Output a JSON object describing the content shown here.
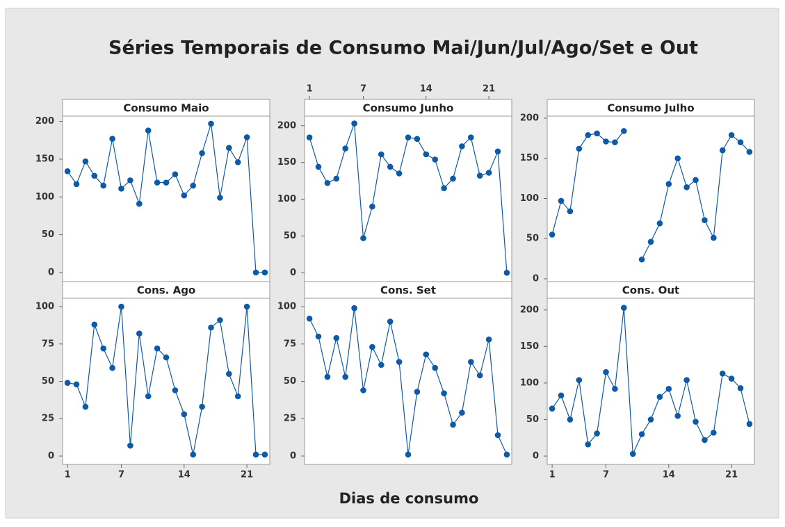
{
  "title": "Séries Temporais de Consumo Mai/Jun/Jul/Ago/Set e Out",
  "xlabel": "Dias de consumo",
  "chart_data": [
    {
      "type": "line",
      "title": "Consumo Maio",
      "color": "#0e5aa7",
      "x": [
        1,
        2,
        3,
        4,
        5,
        6,
        7,
        8,
        9,
        10,
        11,
        12,
        13,
        14,
        15,
        16,
        17,
        18,
        19,
        20,
        21,
        22,
        23
      ],
      "values": [
        134,
        117,
        147,
        128,
        115,
        177,
        111,
        122,
        91,
        188,
        119,
        119,
        130,
        102,
        115,
        158,
        197,
        99,
        165,
        146,
        179,
        0,
        0
      ],
      "xlim": [
        0.45,
        23.55
      ],
      "ylim": [
        -12,
        207
      ],
      "yticks": [
        0,
        50,
        100,
        150,
        200
      ]
    },
    {
      "type": "line",
      "title": "Consumo Junho",
      "color": "#0e5aa7",
      "x": [
        1,
        2,
        3,
        4,
        5,
        6,
        7,
        8,
        9,
        10,
        11,
        12,
        13,
        14,
        15,
        16,
        17,
        18,
        19,
        20,
        21,
        22,
        23
      ],
      "values": [
        184,
        144,
        122,
        128,
        169,
        203,
        47,
        90,
        161,
        144,
        135,
        184,
        182,
        161,
        154,
        115,
        128,
        172,
        184,
        132,
        136,
        165,
        0
      ],
      "xlim": [
        0.45,
        23.55
      ],
      "ylim": [
        -12,
        213
      ],
      "yticks": [
        0,
        50,
        100,
        150,
        200
      ],
      "xticks": [
        1,
        7,
        14,
        21
      ]
    },
    {
      "type": "line",
      "title": "Consumo Julho",
      "color": "#0e5aa7",
      "x": [
        1,
        2,
        3,
        4,
        5,
        6,
        7,
        8,
        9,
        10,
        11,
        12,
        13,
        14,
        15,
        16,
        17,
        18,
        19,
        20,
        21,
        22,
        23
      ],
      "values": [
        55,
        97,
        84,
        162,
        179,
        181,
        171,
        170,
        184,
        null,
        24,
        46,
        69,
        118,
        150,
        114,
        123,
        73,
        51,
        160,
        179,
        170,
        158
      ],
      "xlim": [
        0.45,
        23.55
      ],
      "ylim": [
        -3.5,
        202.6
      ],
      "yticks": [
        0,
        50,
        100,
        150,
        200
      ]
    },
    {
      "type": "line",
      "title": "Cons. Ago",
      "color": "#0e5aa7",
      "x": [
        1,
        2,
        3,
        4,
        5,
        6,
        7,
        8,
        9,
        10,
        11,
        12,
        13,
        14,
        15,
        16,
        17,
        18,
        19,
        20,
        21,
        22,
        23
      ],
      "values": [
        49,
        48,
        33,
        88,
        72,
        59,
        100,
        7,
        82,
        40,
        72,
        66,
        44,
        28,
        1,
        33,
        86,
        91,
        55,
        40,
        100,
        1,
        1
      ],
      "xlim": [
        0.45,
        23.55
      ],
      "ylim": [
        -5.6,
        105.6
      ],
      "yticks": [
        0,
        25,
        50,
        75,
        100
      ],
      "xticks": [
        1,
        7,
        14,
        21
      ]
    },
    {
      "type": "line",
      "title": "Cons. Set",
      "color": "#0e5aa7",
      "x": [
        1,
        2,
        3,
        4,
        5,
        6,
        7,
        8,
        9,
        10,
        11,
        12,
        13,
        14,
        15,
        16,
        17,
        18,
        19,
        20,
        21,
        22,
        23
      ],
      "values": [
        92,
        80,
        53,
        79,
        53,
        99,
        44,
        73,
        61,
        90,
        63,
        1,
        43,
        68,
        59,
        42,
        21,
        29,
        63,
        54,
        78,
        14,
        1
      ],
      "xlim": [
        0.45,
        23.55
      ],
      "ylim": [
        -5.6,
        105.6
      ],
      "yticks": [
        0,
        25,
        50,
        75,
        100
      ]
    },
    {
      "type": "line",
      "title": "Cons. Out",
      "color": "#0e5aa7",
      "x": [
        1,
        2,
        3,
        4,
        5,
        6,
        7,
        8,
        9,
        10,
        11,
        12,
        13,
        14,
        15,
        16,
        17,
        18,
        19,
        20,
        21,
        22,
        23
      ],
      "values": [
        65,
        83,
        50,
        104,
        16,
        31,
        115,
        92,
        203,
        3,
        30,
        50,
        81,
        92,
        55,
        104,
        47,
        22,
        32,
        113,
        106,
        93,
        44
      ],
      "xlim": [
        0.45,
        23.55
      ],
      "ylim": [
        -11.4,
        216
      ],
      "yticks": [
        0,
        50,
        100,
        150,
        200
      ],
      "xticks": [
        1,
        7,
        14,
        21
      ]
    }
  ]
}
